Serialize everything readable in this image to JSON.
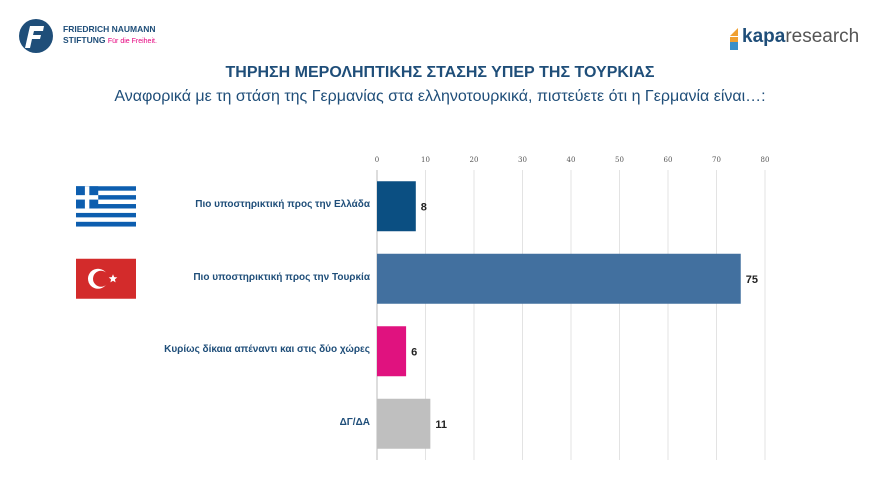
{
  "header": {
    "left_logo": {
      "name": "FRIEDRICH NAUMANN",
      "name2": "STIFTUNG",
      "tagline": "Für die Freiheit."
    },
    "right_logo": {
      "part1": "kapa",
      "part2": "research"
    }
  },
  "chart_data": {
    "type": "bar",
    "orientation": "horizontal",
    "title": "ΤΗΡΗΣΗ ΜΕΡΟΛΗΠΤΙΚΗΣ ΣΤΑΣΗΣ ΥΠΕΡ ΤΗΣ ΤΟΥΡΚΙΑΣ",
    "subtitle": "Αναφορικά με τη στάση της Γερμανίας στα ελληνοτουρκικά, πιστεύετε ότι η Γερμανία είναι…:",
    "categories": [
      "Πιο υποστηρικτική προς την Ελλάδα",
      "Πιο υποστηρικτική προς την Τουρκία",
      "Κυρίως δίκαια απέναντι και στις δύο χώρες",
      "ΔΓ/ΔΑ"
    ],
    "values": [
      8,
      75,
      6,
      11
    ],
    "colors": [
      "#0b4f82",
      "#42709f",
      "#e0127f",
      "#bfbfbf"
    ],
    "flags": [
      "greece-flag",
      "turkey-flag",
      null,
      null
    ],
    "xlim": [
      0,
      80
    ],
    "ticks": [
      "0",
      "10",
      "20",
      "30",
      "40",
      "50",
      "60",
      "70",
      "80"
    ],
    "axis_position": "top",
    "grid": true
  }
}
